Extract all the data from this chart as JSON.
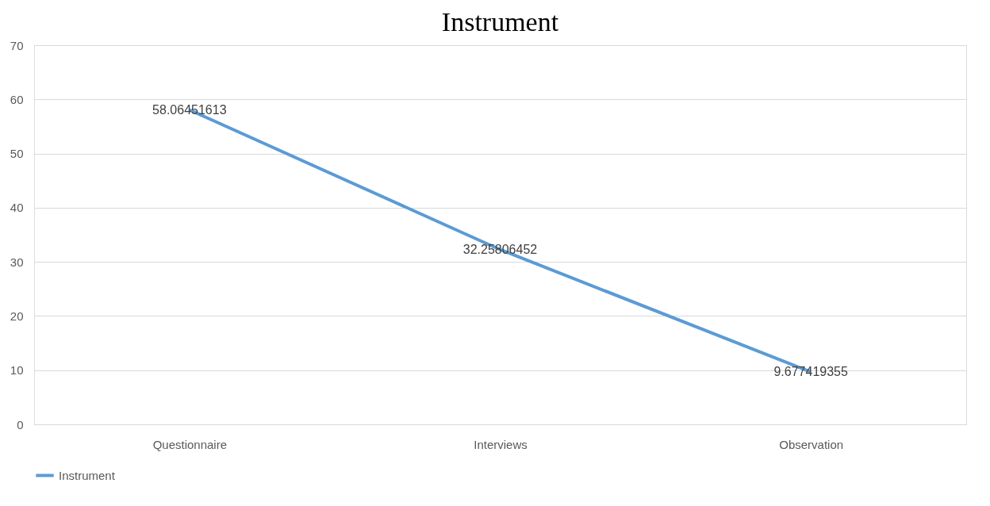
{
  "chart_data": {
    "type": "line",
    "title": "Instrument",
    "categories": [
      "Questionnaire",
      "Interviews",
      "Observation"
    ],
    "series": [
      {
        "name": "Instrument",
        "color": "#5b9bd5",
        "values": [
          58.06451613,
          32.25806452,
          9.677419355
        ]
      }
    ],
    "ylim": [
      0,
      70
    ],
    "yticks": [
      0,
      10,
      20,
      30,
      40,
      50,
      60,
      70
    ],
    "grid": "y",
    "legend": "bottom",
    "data_labels": true,
    "marker": "none",
    "line_style": "solid"
  }
}
